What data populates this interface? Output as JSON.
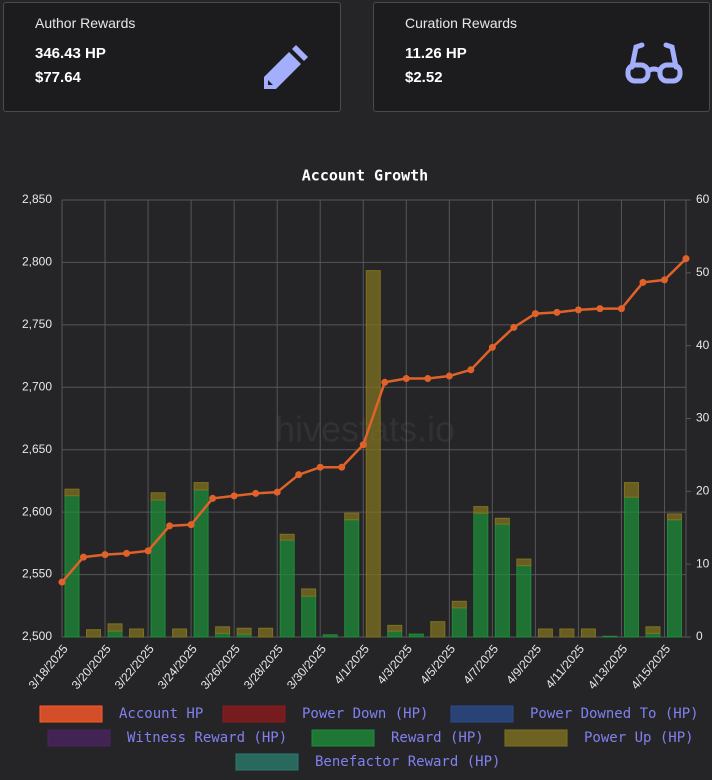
{
  "cards": [
    {
      "title": "Author Rewards",
      "lines": [
        "346.43 HP",
        "$77.64"
      ]
    },
    {
      "title": "Curation Rewards",
      "lines": [
        "11.26 HP",
        "$2.52"
      ]
    }
  ],
  "chart_data": {
    "type": "combo",
    "title": "Account Growth",
    "watermark": "hivestats.io",
    "categories": [
      "3/18/2025",
      null,
      "3/20/2025",
      null,
      "3/22/2025",
      null,
      "3/24/2025",
      null,
      "3/26/2025",
      null,
      "3/28/2025",
      null,
      "3/30/2025",
      null,
      "4/1/2025",
      null,
      "4/3/2025",
      null,
      "4/5/2025",
      null,
      "4/7/2025",
      null,
      "4/9/2025",
      null,
      "4/11/2025",
      null,
      "4/13/2025",
      null,
      "4/15/2025",
      null
    ],
    "series": [
      {
        "name": "Account HP",
        "type": "line",
        "color": "#e0622a",
        "legend_color": "#ff5a2a",
        "values": [
          2544,
          2564,
          2566,
          2567,
          2569,
          2589,
          2590,
          2611,
          2613,
          2615,
          2616,
          2630,
          2636,
          2636,
          2654,
          2704,
          2707,
          2707,
          2709,
          2714,
          2732,
          2748,
          2759,
          2760,
          2762,
          2763,
          2763,
          2784,
          2786,
          2803
        ]
      },
      {
        "name": "Power Down (HP)",
        "color": "#8b1a1e"
      },
      {
        "name": "Power Downed To (HP)",
        "color": "#2a4b8c"
      },
      {
        "name": "Witness Reward (HP)",
        "color": "#4a2460"
      },
      {
        "name": "Reward (HP)",
        "type": "bar",
        "axis": "y2",
        "color": "#1e8c3a",
        "values": [
          19.4,
          0,
          0.8,
          0,
          18.8,
          0,
          20.2,
          0.5,
          0.4,
          0,
          13.3,
          5.6,
          0.3,
          16.1,
          0,
          0.8,
          0.4,
          0,
          4.0,
          17.0,
          15.5,
          9.8,
          0,
          0,
          0,
          0.1,
          19.2,
          0.5,
          16.1,
          0
        ]
      },
      {
        "name": "Power Up (HP)",
        "type": "bar",
        "axis": "y2",
        "color": "#7f7220",
        "values": [
          0.9,
          1.0,
          1.0,
          1.1,
          1.0,
          1.1,
          1.0,
          0.9,
          0.8,
          1.2,
          0.8,
          1.0,
          0,
          0.9,
          50.3,
          0.8,
          0,
          2.1,
          0.9,
          0.9,
          0.8,
          0.9,
          1.1,
          1.1,
          1.1,
          0,
          2.0,
          0.9,
          0.8,
          0
        ]
      },
      {
        "name": "Benefactor Reward (HP)",
        "color": "#2a7a6c"
      }
    ],
    "ylim": [
      2500,
      2850
    ],
    "yticks": [
      {
        "value": 2500,
        "label": "2,500"
      },
      {
        "value": 2550,
        "label": "2,550"
      },
      {
        "value": 2600,
        "label": "2,600"
      },
      {
        "value": 2650,
        "label": "2,650"
      },
      {
        "value": 2700,
        "label": "2,700"
      },
      {
        "value": 2750,
        "label": "2,750"
      },
      {
        "value": 2800,
        "label": "2,800"
      },
      {
        "value": 2850,
        "label": "2,850"
      }
    ],
    "y2lim": [
      0,
      60
    ],
    "y2ticks": [
      0,
      10,
      20,
      30,
      40,
      50,
      60
    ],
    "grid": true
  }
}
